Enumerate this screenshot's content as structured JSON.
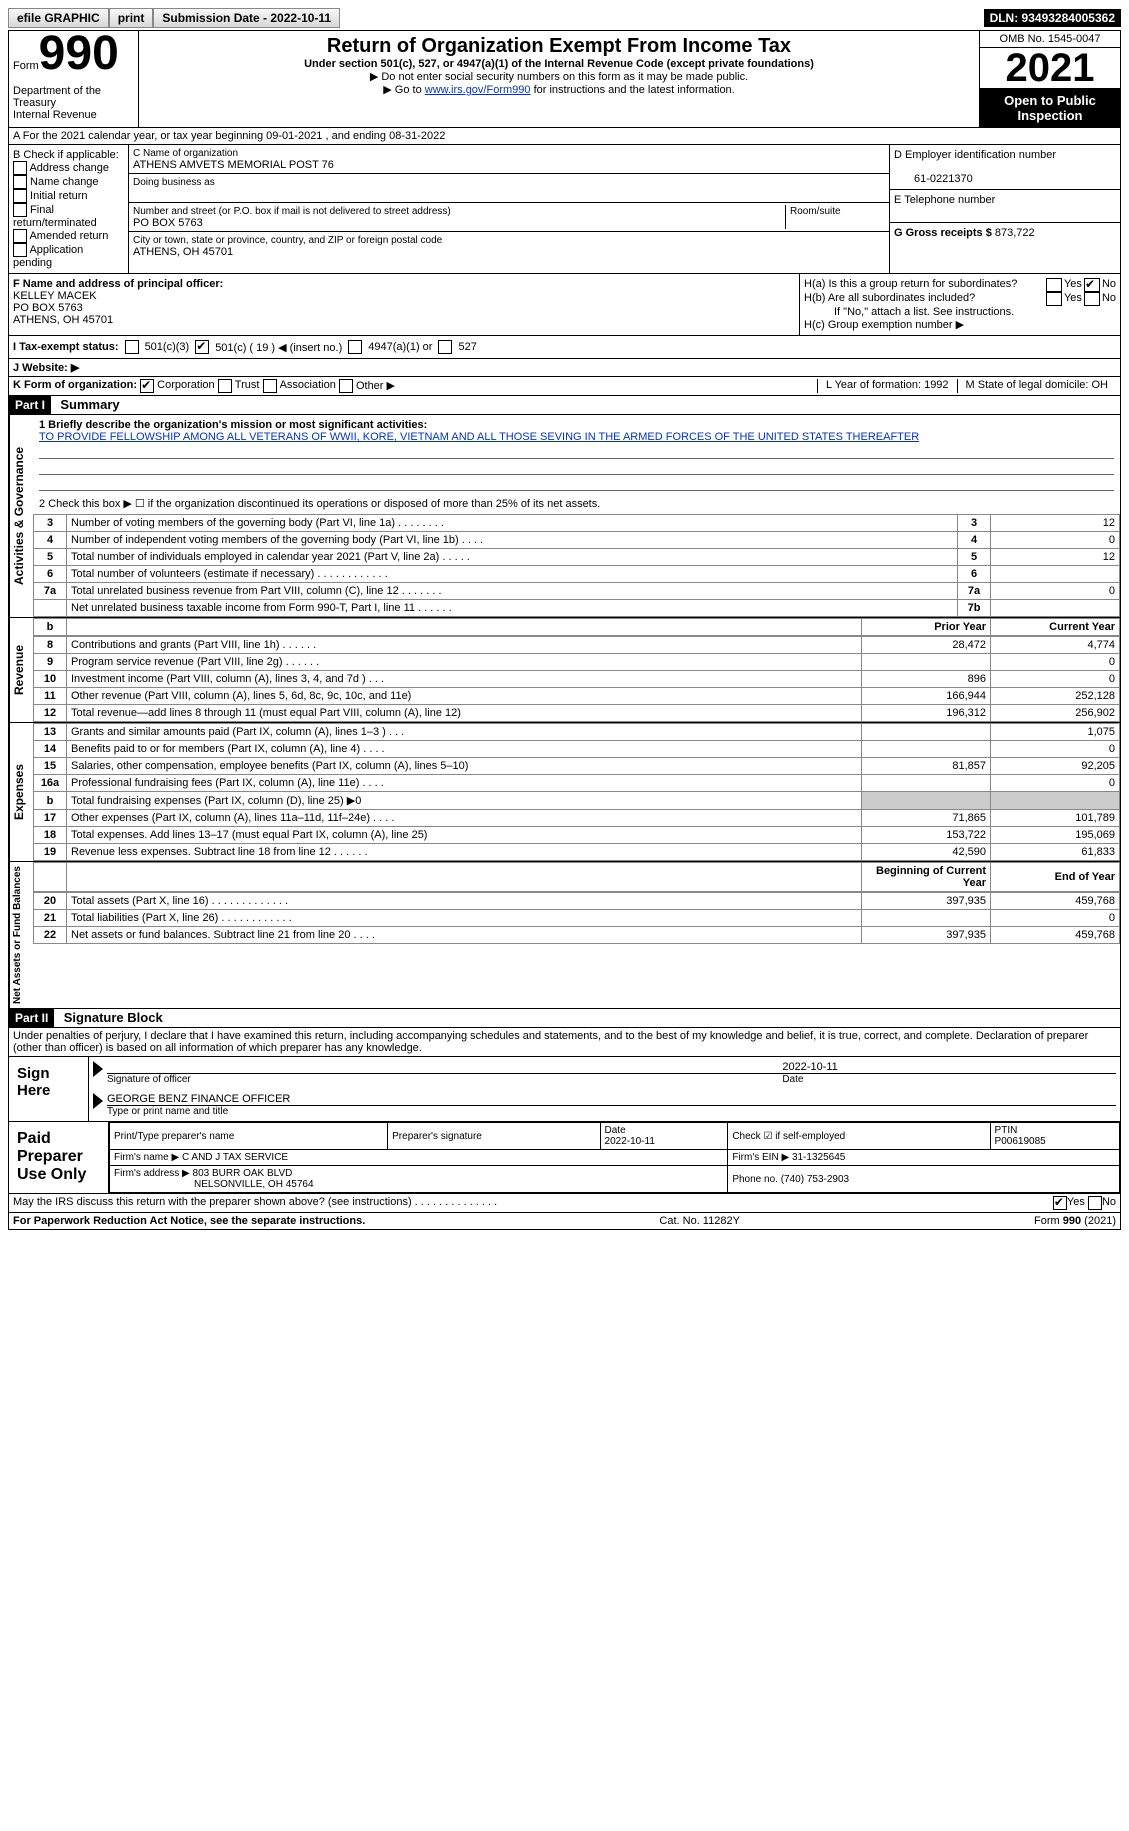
{
  "top_bar": {
    "efile": "efile GRAPHIC",
    "print_btn": "print",
    "submission": "Submission Date - 2022-10-11",
    "dln": "DLN: 93493284005362"
  },
  "header": {
    "form_label": "Form",
    "form_number": "990",
    "dept": "Department of the Treasury",
    "irs": "Internal Revenue Service",
    "title": "Return of Organization Exempt From Income Tax",
    "subtitle": "Under section 501(c), 527, or 4947(a)(1) of the Internal Revenue Code (except private foundations)",
    "note1": "▶ Do not enter social security numbers on this form as it may be made public.",
    "note2_prefix": "▶ Go to ",
    "note2_link": "www.irs.gov/Form990",
    "note2_suffix": " for instructions and the latest information.",
    "omb": "OMB No. 1545-0047",
    "year": "2021",
    "open_public": "Open to Public Inspection"
  },
  "line_a": "A For the 2021 calendar year, or tax year beginning 09-01-2021    , and ending 08-31-2022",
  "section_b": {
    "check_label": "B Check if applicable:",
    "checks": [
      "Address change",
      "Name change",
      "Initial return",
      "Final return/terminated",
      "Amended return",
      "Application pending"
    ],
    "c_label": "C Name of organization",
    "org_name": "ATHENS AMVETS MEMORIAL POST 76",
    "dba_label": "Doing business as",
    "dba": "",
    "addr_label": "Number and street (or P.O. box if mail is not delivered to street address)",
    "room_label": "Room/suite",
    "addr": "PO BOX 5763",
    "city_label": "City or town, state or province, country, and ZIP or foreign postal code",
    "city": "ATHENS, OH  45701",
    "d_label": "D Employer identification number",
    "ein": "61-0221370",
    "e_label": "E Telephone number",
    "phone": "",
    "g_label": "G Gross receipts $",
    "gross": "873,722"
  },
  "section_fh": {
    "f_label": "F  Name and address of principal officer:",
    "officer_name": "KELLEY MACEK",
    "officer_addr1": "PO BOX 5763",
    "officer_addr2": "ATHENS, OH  45701",
    "ha": "H(a)  Is this a group return for subordinates?",
    "hb": "H(b)  Are all subordinates included?",
    "hb_note": "If \"No,\" attach a list. See instructions.",
    "hc": "H(c)  Group exemption number ▶",
    "yes": "Yes",
    "no": "No"
  },
  "tax_status": {
    "label": "I  Tax-exempt status:",
    "o1": "501(c)(3)",
    "o2": "501(c) ( 19 ) ◀ (insert no.)",
    "o3": "4947(a)(1) or",
    "o4": "527"
  },
  "website_label": "J Website: ▶",
  "k_row": {
    "label": "K Form of organization:",
    "corp": "Corporation",
    "trust": "Trust",
    "assoc": "Association",
    "other": "Other ▶",
    "l": "L Year of formation: 1992",
    "m": "M State of legal domicile: OH"
  },
  "part1": {
    "header": "Part I",
    "title": "Summary",
    "q1_label": "1   Briefly describe the organization's mission or most significant activities:",
    "mission": "TO PROVIDE FELLOWSHIP AMONG ALL VETERANS OF WWII, KORE, VIETNAM AND ALL THOSE SEVING IN THE ARMED FORCES OF THE UNITED STATES THEREAFTER",
    "q2": "2    Check this box ▶ ☐  if the organization discontinued its operations or disposed of more than 25% of its net assets.",
    "rows_gov": [
      {
        "n": "3",
        "label": "Number of voting members of the governing body (Part VI, line 1a)  .  .  .  .  .  .  .  .",
        "box": "3",
        "val": "12"
      },
      {
        "n": "4",
        "label": "Number of independent voting members of the governing body (Part VI, line 1b)  .  .  .  .",
        "box": "4",
        "val": "0"
      },
      {
        "n": "5",
        "label": "Total number of individuals employed in calendar year 2021 (Part V, line 2a)  .  .  .  .  .",
        "box": "5",
        "val": "12"
      },
      {
        "n": "6",
        "label": "Total number of volunteers (estimate if necessary)  .  .  .  .  .  .  .  .  .  .  .  .",
        "box": "6",
        "val": ""
      },
      {
        "n": "7a",
        "label": "Total unrelated business revenue from Part VIII, column (C), line 12  .  .  .  .  .  .  .",
        "box": "7a",
        "val": "0"
      },
      {
        "n": "",
        "label": "Net unrelated business taxable income from Form 990-T, Part I, line 11  .  .  .  .  .  .",
        "box": "7b",
        "val": ""
      }
    ],
    "col_prior": "Prior Year",
    "col_current": "Current Year",
    "rows_rev": [
      {
        "n": "8",
        "label": "Contributions and grants (Part VIII, line 1h)  .  .  .  .  .  .",
        "p": "28,472",
        "c": "4,774"
      },
      {
        "n": "9",
        "label": "Program service revenue (Part VIII, line 2g)  .  .  .  .  .  .",
        "p": "",
        "c": "0"
      },
      {
        "n": "10",
        "label": "Investment income (Part VIII, column (A), lines 3, 4, and 7d )  .  .  .",
        "p": "896",
        "c": "0"
      },
      {
        "n": "11",
        "label": "Other revenue (Part VIII, column (A), lines 5, 6d, 8c, 9c, 10c, and 11e)",
        "p": "166,944",
        "c": "252,128"
      },
      {
        "n": "12",
        "label": "Total revenue—add lines 8 through 11 (must equal Part VIII, column (A), line 12)",
        "p": "196,312",
        "c": "256,902"
      }
    ],
    "rows_exp": [
      {
        "n": "13",
        "label": "Grants and similar amounts paid (Part IX, column (A), lines 1–3 )  .  .  .",
        "p": "",
        "c": "1,075"
      },
      {
        "n": "14",
        "label": "Benefits paid to or for members (Part IX, column (A), line 4)  .  .  .  .",
        "p": "",
        "c": "0"
      },
      {
        "n": "15",
        "label": "Salaries, other compensation, employee benefits (Part IX, column (A), lines 5–10)",
        "p": "81,857",
        "c": "92,205"
      },
      {
        "n": "16a",
        "label": "Professional fundraising fees (Part IX, column (A), line 11e)  .  .  .  .",
        "p": "",
        "c": "0"
      },
      {
        "n": "b",
        "label": "Total fundraising expenses (Part IX, column (D), line 25) ▶0",
        "p": "SHADE",
        "c": "SHADE"
      },
      {
        "n": "17",
        "label": "Other expenses (Part IX, column (A), lines 11a–11d, 11f–24e)  .  .  .  .",
        "p": "71,865",
        "c": "101,789"
      },
      {
        "n": "18",
        "label": "Total expenses. Add lines 13–17 (must equal Part IX, column (A), line 25)",
        "p": "153,722",
        "c": "195,069"
      },
      {
        "n": "19",
        "label": "Revenue less expenses. Subtract line 18 from line 12  .  .  .  .  .  .",
        "p": "42,590",
        "c": "61,833"
      }
    ],
    "col_begin": "Beginning of Current Year",
    "col_end": "End of Year",
    "rows_net": [
      {
        "n": "20",
        "label": "Total assets (Part X, line 16)  .  .  .  .  .  .  .  .  .  .  .  .  .",
        "p": "397,935",
        "c": "459,768"
      },
      {
        "n": "21",
        "label": "Total liabilities (Part X, line 26)  .  .  .  .  .  .  .  .  .  .  .  .",
        "p": "",
        "c": "0"
      },
      {
        "n": "22",
        "label": "Net assets or fund balances. Subtract line 21 from line 20  .  .  .  .",
        "p": "397,935",
        "c": "459,768"
      }
    ],
    "vlabel_gov": "Activities & Governance",
    "vlabel_rev": "Revenue",
    "vlabel_exp": "Expenses",
    "vlabel_net": "Net Assets or Fund Balances"
  },
  "part2": {
    "header": "Part II",
    "title": "Signature Block",
    "declaration": "Under penalties of perjury, I declare that I have examined this return, including accompanying schedules and statements, and to the best of my knowledge and belief, it is true, correct, and complete. Declaration of preparer (other than officer) is based on all information of which preparer has any knowledge.",
    "sign_here": "Sign Here",
    "sig_officer": "Signature of officer",
    "sig_date": "2022-10-11",
    "date_label": "Date",
    "officer_name": "GEORGE BENZ  FINANCE OFFICER",
    "type_name": "Type or print name and title",
    "paid_prep": "Paid Preparer Use Only",
    "prep_name_label": "Print/Type preparer's name",
    "prep_sig_label": "Preparer's signature",
    "prep_date_label": "Date",
    "prep_date": "2022-10-11",
    "check_if": "Check ☑ if self-employed",
    "ptin_label": "PTIN",
    "ptin": "P00619085",
    "firm_name_label": "Firm's name   ▶",
    "firm_name": "C AND J TAX SERVICE",
    "firm_ein_label": "Firm's EIN ▶",
    "firm_ein": "31-1325645",
    "firm_addr_label": "Firm's address ▶",
    "firm_addr1": "803 BURR OAK BLVD",
    "firm_addr2": "NELSONVILLE, OH  45764",
    "firm_phone_label": "Phone no.",
    "firm_phone": "(740) 753-2903"
  },
  "footer": {
    "discuss": "May the IRS discuss this return with the preparer shown above? (see instructions)  .  .  .  .  .  .  .  .  .  .  .  .  .  .",
    "yes": "Yes",
    "no": "No",
    "pra": "For Paperwork Reduction Act Notice, see the separate instructions.",
    "cat": "Cat. No. 11282Y",
    "form": "Form 990 (2021)"
  }
}
